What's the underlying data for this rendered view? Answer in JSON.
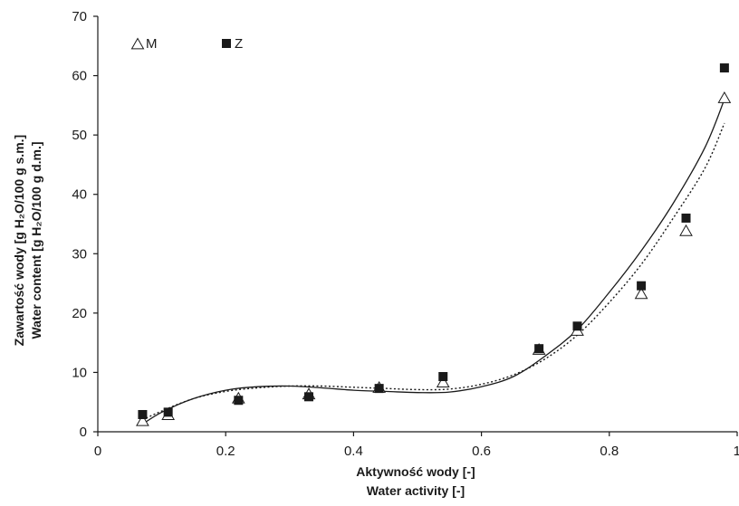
{
  "chart_data": {
    "type": "scatter",
    "xlabel_lines": [
      "Aktywność wody [-]",
      "Water activity [-]"
    ],
    "ylabel_lines": [
      "Zawartość wody [g H₂O/100 g s.m.]",
      "Water content [g H₂O/100 g d.m.]"
    ],
    "xlim": [
      0,
      1
    ],
    "ylim": [
      0,
      70
    ],
    "x_ticks": [
      0,
      0.2,
      0.4,
      0.6,
      0.8,
      1
    ],
    "x_tick_labels": [
      "0",
      "0.2",
      "0.4",
      "0.6",
      "0.8",
      "1"
    ],
    "y_ticks": [
      0,
      10,
      20,
      30,
      40,
      50,
      60,
      70
    ],
    "y_tick_labels": [
      "0",
      "10",
      "20",
      "30",
      "40",
      "50",
      "60",
      "70"
    ],
    "grid": false,
    "legend_position": "top-left",
    "series": [
      {
        "name": "M",
        "marker": "open-triangle",
        "color": "#1a1a1a",
        "x": [
          0.07,
          0.11,
          0.22,
          0.33,
          0.44,
          0.54,
          0.69,
          0.75,
          0.85,
          0.92,
          0.98
        ],
        "y": [
          1.8,
          2.8,
          5.6,
          6.3,
          7.4,
          8.3,
          13.8,
          17.0,
          23.2,
          33.8,
          56.2
        ]
      },
      {
        "name": "Z",
        "marker": "filled-square",
        "color": "#1a1a1a",
        "x": [
          0.07,
          0.11,
          0.22,
          0.33,
          0.44,
          0.54,
          0.69,
          0.75,
          0.85,
          0.92,
          0.98
        ],
        "y": [
          2.9,
          3.3,
          5.3,
          5.9,
          7.3,
          9.3,
          14.0,
          17.8,
          24.6,
          36.0,
          61.3
        ]
      }
    ],
    "fit_curves": [
      {
        "style": "solid",
        "x": [
          0.07,
          0.1,
          0.15,
          0.2,
          0.25,
          0.3,
          0.35,
          0.4,
          0.45,
          0.5,
          0.55,
          0.6,
          0.65,
          0.7,
          0.75,
          0.8,
          0.85,
          0.9,
          0.95,
          0.98
        ],
        "y": [
          1.3,
          3.3,
          5.6,
          7.0,
          7.6,
          7.7,
          7.4,
          7.0,
          6.8,
          6.6,
          6.7,
          7.6,
          9.3,
          12.8,
          17.2,
          23.5,
          30.5,
          38.5,
          48.0,
          56.0
        ]
      },
      {
        "style": "dotted",
        "x": [
          0.07,
          0.1,
          0.15,
          0.2,
          0.25,
          0.3,
          0.35,
          0.4,
          0.45,
          0.5,
          0.55,
          0.6,
          0.65,
          0.7,
          0.75,
          0.8,
          0.85,
          0.9,
          0.95,
          0.98
        ],
        "y": [
          2.0,
          3.5,
          5.6,
          6.8,
          7.4,
          7.7,
          7.7,
          7.5,
          7.3,
          7.1,
          7.2,
          8.0,
          9.6,
          12.3,
          16.3,
          21.8,
          28.2,
          36.0,
          44.5,
          52.0
        ]
      }
    ]
  }
}
